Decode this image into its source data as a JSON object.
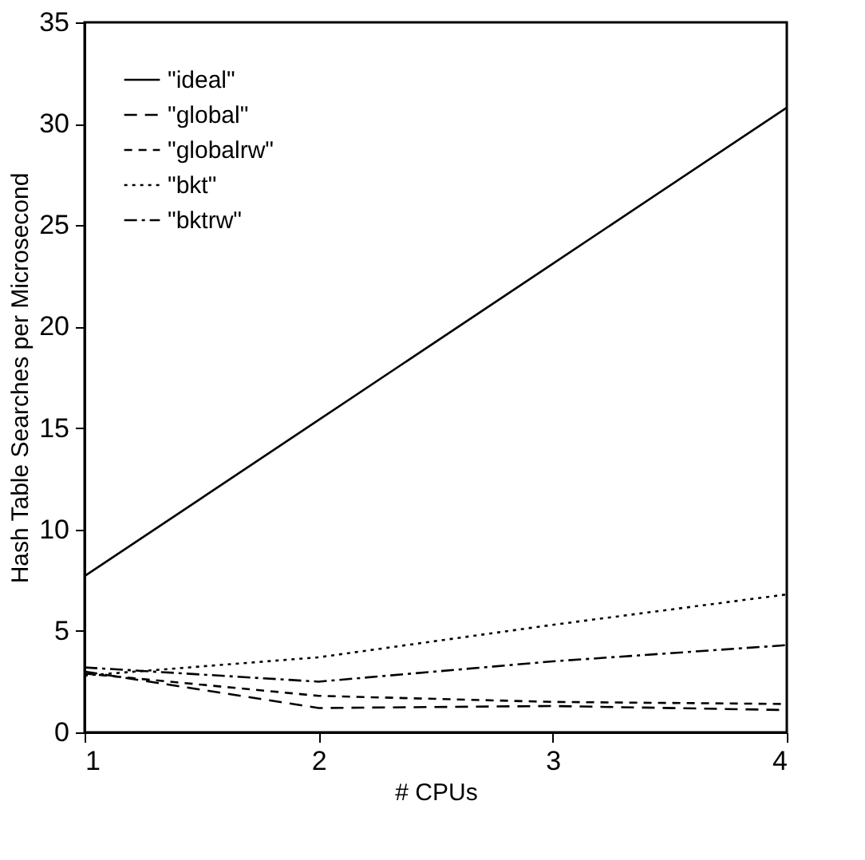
{
  "chart_data": {
    "type": "line",
    "xlabel": "# CPUs",
    "ylabel": "Hash Table Searches per Microsecond",
    "x": [
      1,
      2,
      3,
      4
    ],
    "xlim": [
      1,
      4
    ],
    "xticks": [
      1,
      2,
      3,
      4
    ],
    "ylim": [
      0,
      35
    ],
    "yticks": [
      0,
      5,
      10,
      15,
      20,
      25,
      30,
      35
    ],
    "legend": "top left",
    "grid": false,
    "marker": "none",
    "series": [
      {
        "name": "\"ideal\"",
        "color": "#000000",
        "line_style": "solid",
        "values": [
          7.7,
          15.4,
          23.1,
          30.8
        ]
      },
      {
        "name": "\"global\"",
        "color": "#000000",
        "line_style": "dashed",
        "values": [
          3.0,
          1.2,
          1.3,
          1.1
        ]
      },
      {
        "name": "\"globalrw\"",
        "color": "#000000",
        "line_style": "dashed",
        "values": [
          2.9,
          1.8,
          1.5,
          1.4
        ]
      },
      {
        "name": "\"bkt\"",
        "color": "#000000",
        "line_style": "dotted",
        "values": [
          2.8,
          3.7,
          5.3,
          6.8
        ]
      },
      {
        "name": "\"bktrw\"",
        "color": "#000000",
        "line_style": "dashdot",
        "values": [
          3.2,
          2.5,
          3.5,
          4.3
        ]
      }
    ]
  }
}
